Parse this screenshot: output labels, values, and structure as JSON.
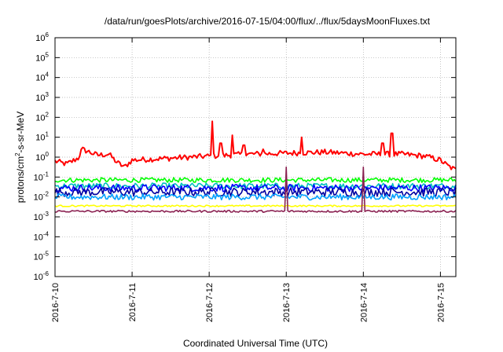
{
  "chart_data": {
    "type": "line",
    "title": "/data/run/goesPlots/archive/2016-07-15/04:00/flux/../flux/5daysMoonFluxes.txt",
    "xlabel": "Coordinated Universal Time (UTC)",
    "ylabel": "protons/cm2-s-sr-MeV",
    "yscale": "log",
    "ylim_exp": [
      -6,
      6
    ],
    "y_tick_exponents": [
      -6,
      -5,
      -4,
      -3,
      -2,
      -1,
      0,
      1,
      2,
      3,
      4,
      5,
      6
    ],
    "xlim_days": [
      0,
      5.2
    ],
    "x_tick_labels": [
      "2016-7-10",
      "2016-7-11",
      "2016-7-12",
      "2016-7-13",
      "2016-7-14",
      "2016-7-15"
    ],
    "grid": true,
    "legend": "none",
    "series": [
      {
        "color": "#ff0000",
        "base_log": -0.05,
        "noise": 0.14,
        "anchors": [
          [
            0,
            -0.15
          ],
          [
            0.15,
            -0.3
          ],
          [
            0.3,
            0
          ],
          [
            0.35,
            0.45
          ],
          [
            0.55,
            0.15
          ],
          [
            0.7,
            0.2
          ],
          [
            0.8,
            -0.2
          ],
          [
            0.9,
            -0.45
          ],
          [
            1.0,
            -0.1
          ],
          [
            1.5,
            0.0
          ],
          [
            2.0,
            0.1
          ],
          [
            2.5,
            0.2
          ],
          [
            3.0,
            0.25
          ],
          [
            3.5,
            0.3
          ],
          [
            4.0,
            0.2
          ],
          [
            4.5,
            0.2
          ],
          [
            4.8,
            0.1
          ],
          [
            5.0,
            -0.1
          ],
          [
            5.1,
            -0.4
          ],
          [
            5.2,
            -0.6
          ]
        ],
        "spikes": [
          [
            2.04,
            1.8
          ],
          [
            2.3,
            1.1
          ],
          [
            2.15,
            0.7
          ],
          [
            2.45,
            0.6
          ],
          [
            3.2,
            1.0
          ],
          [
            4.25,
            0.7
          ],
          [
            4.37,
            1.2
          ],
          [
            2.7,
            0.4
          ]
        ]
      },
      {
        "color": "#00ff00",
        "base_log": -1.15,
        "noise": 0.12,
        "anchors": [],
        "spikes": []
      },
      {
        "color": "#00bfbf",
        "base_log": -1.45,
        "noise": 0.15,
        "anchors": [],
        "spikes": []
      },
      {
        "color": "#0000ff",
        "base_log": -1.55,
        "noise": 0.18,
        "anchors": [],
        "spikes": []
      },
      {
        "color": "#0000a0",
        "base_log": -1.75,
        "noise": 0.22,
        "anchors": [],
        "spikes": []
      },
      {
        "color": "#00a0ff",
        "base_log": -2.0,
        "noise": 0.15,
        "anchors": [],
        "spikes": []
      },
      {
        "color": "#ffff00",
        "base_log": -2.45,
        "noise": 0.04,
        "anchors": [],
        "spikes": []
      },
      {
        "color": "#8b2252",
        "base_log": -2.72,
        "noise": 0.05,
        "anchors": [],
        "spikes": [
          [
            3.0,
            -0.5
          ],
          [
            4.0,
            -0.5
          ]
        ]
      }
    ]
  }
}
